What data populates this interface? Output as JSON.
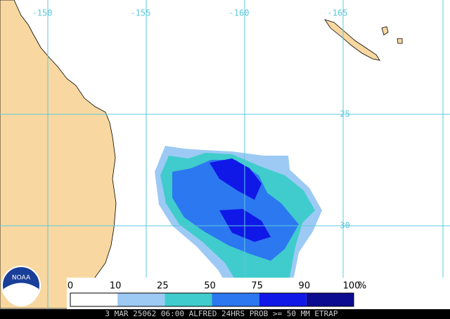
{
  "map": {
    "lon_labels": [
      -150,
      -155,
      -160,
      -165
    ],
    "lat_labels": [
      -25,
      -30
    ]
  },
  "colorbar": {
    "ticks": [
      0,
      10,
      25,
      50,
      75,
      90,
      100
    ],
    "unit": "%",
    "colors": [
      "#ffffff",
      "#9ccaf4",
      "#40cccc",
      "#2c78f0",
      "#1018e8",
      "#0c0c90"
    ]
  },
  "logo": "NOAA",
  "footer": "3 MAR 25062 06:00 ALFRED 24HRS PROB >= 50 MM ETRAP"
}
